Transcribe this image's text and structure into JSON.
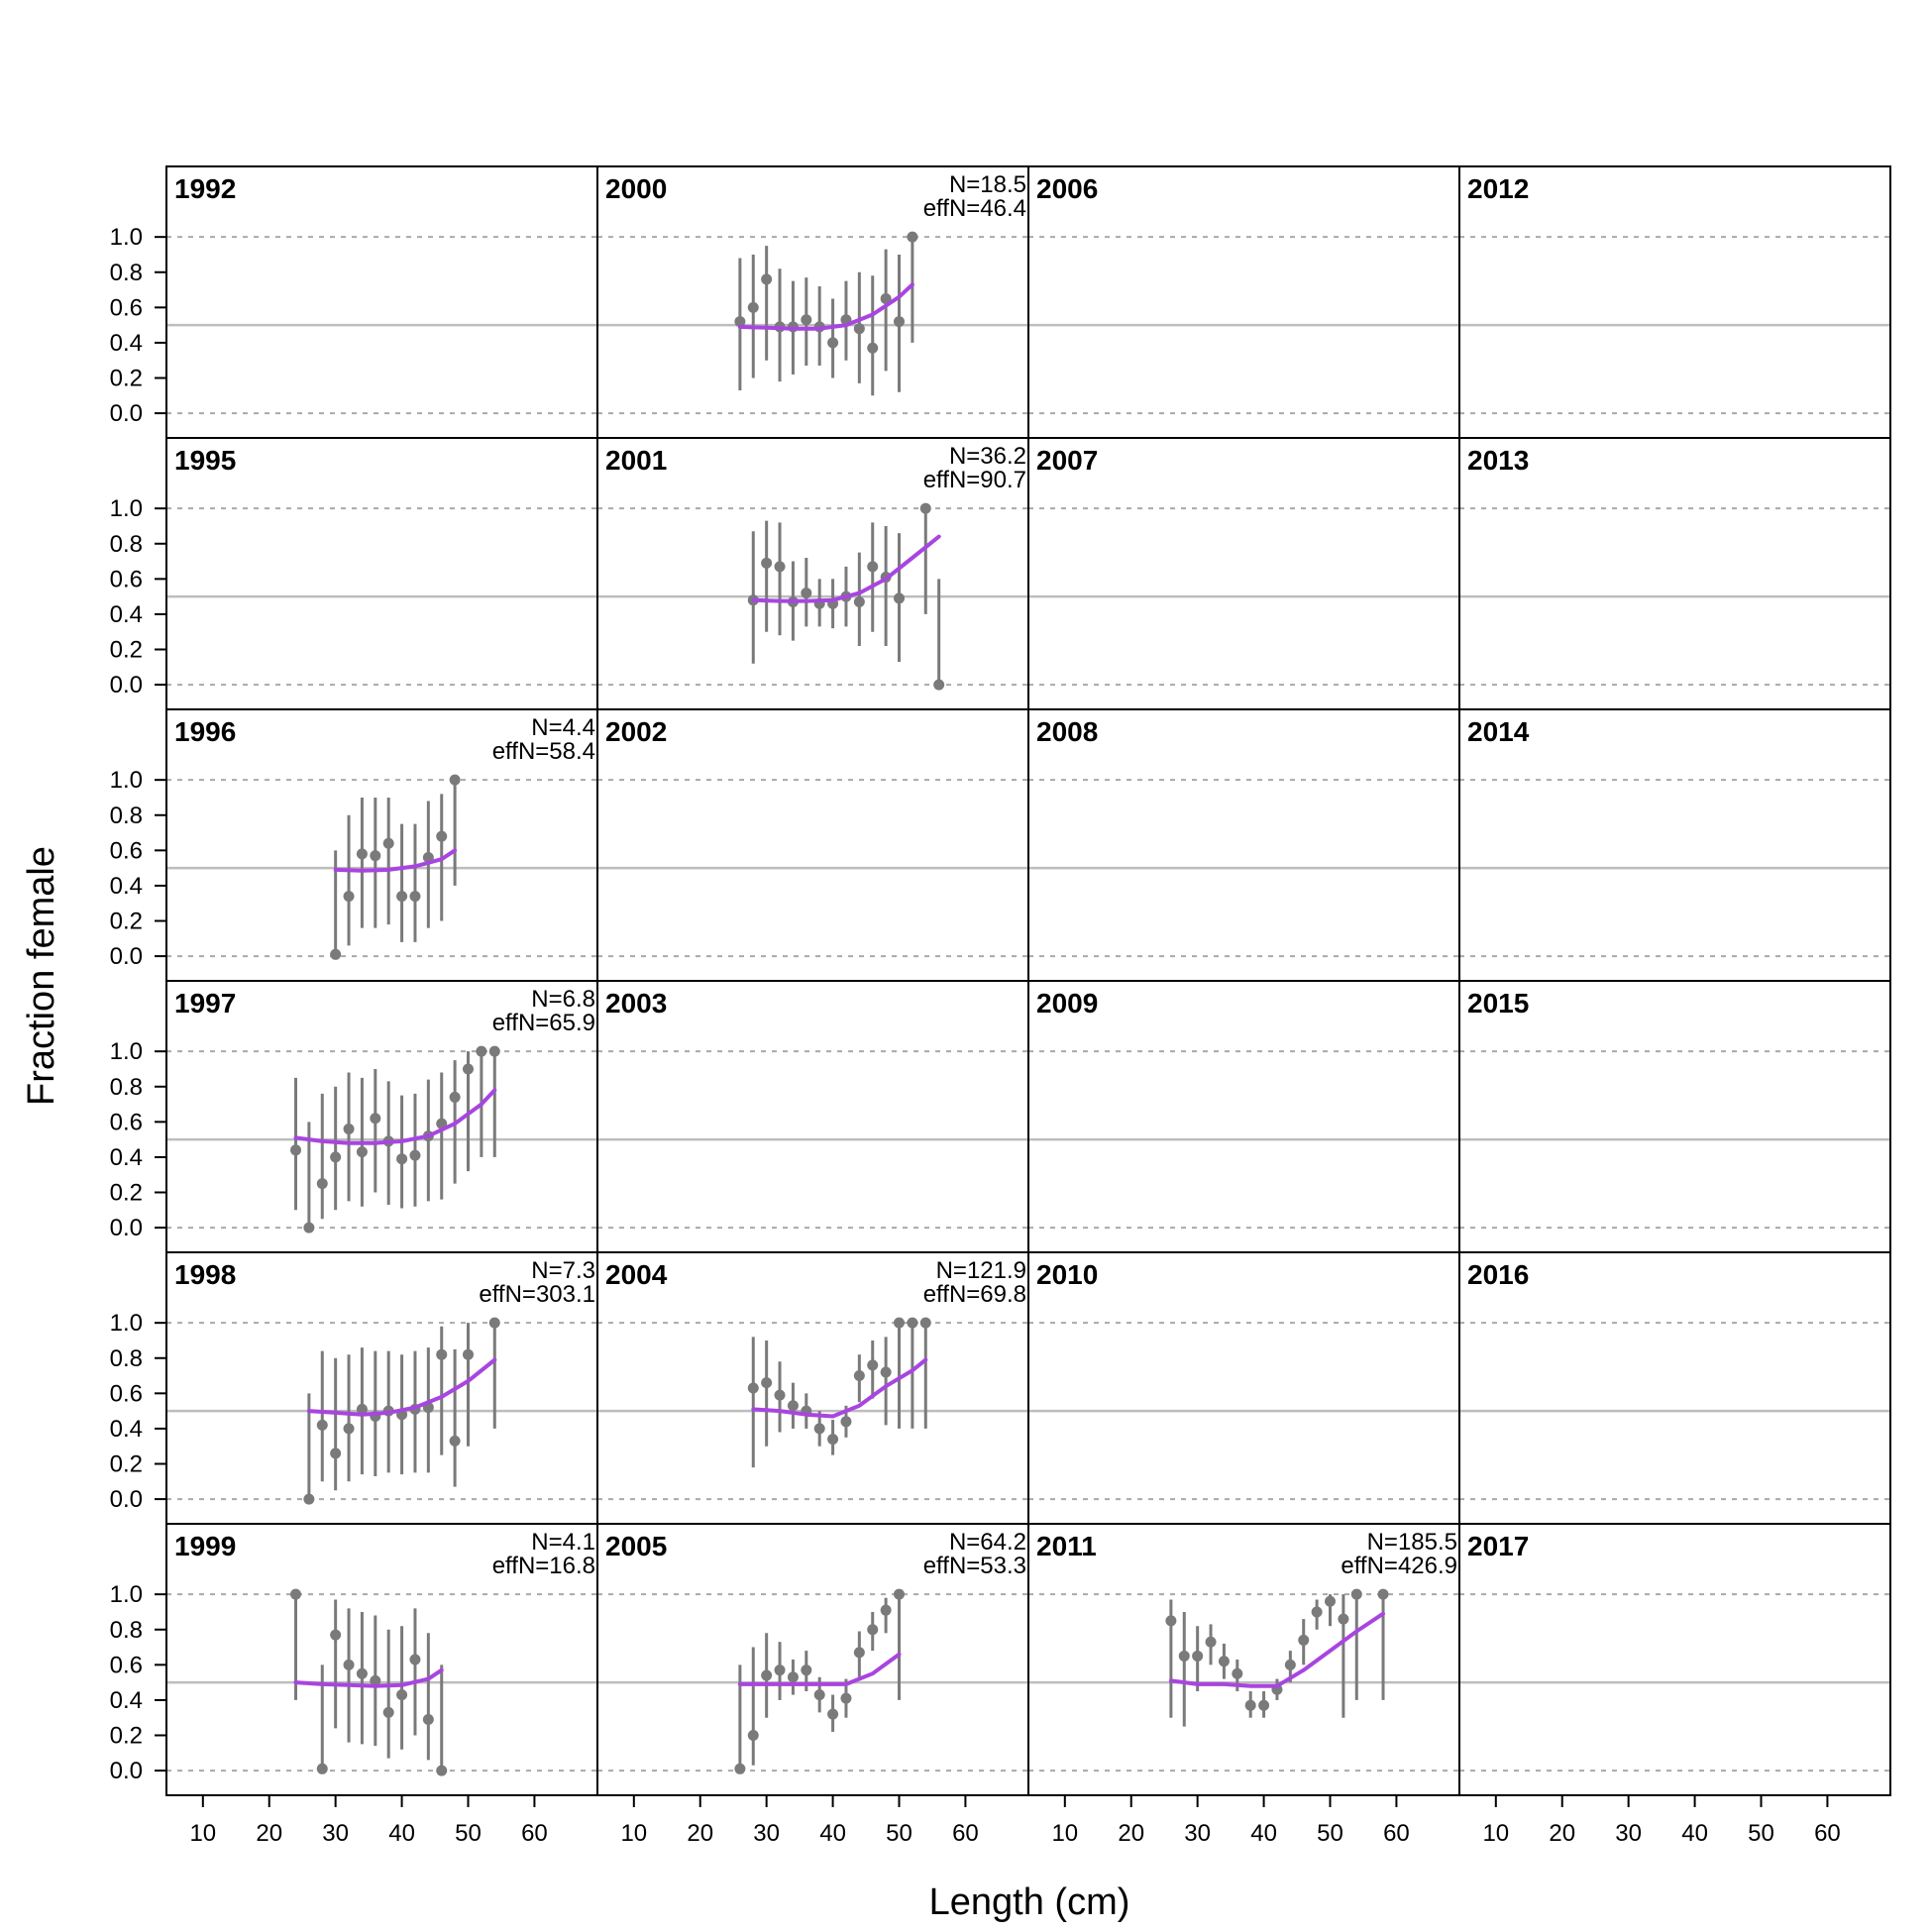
{
  "chart_data": {
    "type": "scatter",
    "xlabel": "Length (cm)",
    "ylabel": "Fraction female",
    "xlim": [
      4.5,
      69.5
    ],
    "ylim": [
      -0.14,
      1.4
    ],
    "xticks": [
      10,
      20,
      30,
      40,
      50,
      60
    ],
    "yticks": [
      "0.0",
      "0.2",
      "0.4",
      "0.6",
      "0.8",
      "1.0"
    ],
    "reference_line": 0.5,
    "grid_lines": [
      0,
      1
    ],
    "colors": {
      "points": "#7a7a7a",
      "fit": "#a845e0",
      "reference": "#bdbdbd",
      "grid": "#a9a9a9",
      "frame": "#000000"
    },
    "layout": {
      "columns": 4,
      "rows": 6,
      "fill_order": "column-major"
    },
    "panels": [
      {
        "year": "1992"
      },
      {
        "year": "1995"
      },
      {
        "year": "1996",
        "N": "N=4.4",
        "effN": "effN=58.4",
        "points": [
          [
            30,
            0.01,
            0.0,
            0.6
          ],
          [
            32,
            0.34,
            0.06,
            0.8
          ],
          [
            34,
            0.58,
            0.16,
            0.9
          ],
          [
            36,
            0.57,
            0.16,
            0.9
          ],
          [
            38,
            0.64,
            0.18,
            0.9
          ],
          [
            40,
            0.34,
            0.08,
            0.75
          ],
          [
            42,
            0.34,
            0.08,
            0.75
          ],
          [
            44,
            0.56,
            0.16,
            0.88
          ],
          [
            46,
            0.68,
            0.2,
            0.92
          ],
          [
            48,
            1.0,
            0.4,
            1.0
          ]
        ],
        "fit": [
          [
            30,
            0.49
          ],
          [
            34,
            0.485
          ],
          [
            38,
            0.49
          ],
          [
            42,
            0.51
          ],
          [
            46,
            0.55
          ],
          [
            48,
            0.6
          ]
        ]
      },
      {
        "year": "1997",
        "N": "N=6.8",
        "effN": "effN=65.9",
        "points": [
          [
            24,
            0.44,
            0.1,
            0.85
          ],
          [
            26,
            0.0,
            0.0,
            0.6
          ],
          [
            28,
            0.25,
            0.05,
            0.76
          ],
          [
            30,
            0.4,
            0.1,
            0.8
          ],
          [
            32,
            0.56,
            0.15,
            0.88
          ],
          [
            34,
            0.43,
            0.12,
            0.85
          ],
          [
            36,
            0.62,
            0.2,
            0.9
          ],
          [
            38,
            0.49,
            0.13,
            0.83
          ],
          [
            40,
            0.39,
            0.11,
            0.75
          ],
          [
            42,
            0.41,
            0.12,
            0.76
          ],
          [
            44,
            0.52,
            0.15,
            0.84
          ],
          [
            46,
            0.59,
            0.16,
            0.88
          ],
          [
            48,
            0.74,
            0.25,
            0.95
          ],
          [
            50,
            0.9,
            0.32,
            1.0
          ],
          [
            52,
            1.0,
            0.4,
            1.0
          ],
          [
            54,
            1.0,
            0.4,
            1.0
          ]
        ],
        "fit": [
          [
            24,
            0.51
          ],
          [
            28,
            0.49
          ],
          [
            32,
            0.48
          ],
          [
            36,
            0.48
          ],
          [
            40,
            0.49
          ],
          [
            44,
            0.52
          ],
          [
            48,
            0.59
          ],
          [
            52,
            0.7
          ],
          [
            54,
            0.78
          ]
        ]
      },
      {
        "year": "1998",
        "N": "N=7.3",
        "effN": "effN=303.1",
        "points": [
          [
            26,
            0.0,
            0.0,
            0.6
          ],
          [
            28,
            0.42,
            0.1,
            0.84
          ],
          [
            30,
            0.26,
            0.05,
            0.8
          ],
          [
            32,
            0.4,
            0.1,
            0.82
          ],
          [
            34,
            0.51,
            0.14,
            0.86
          ],
          [
            36,
            0.47,
            0.13,
            0.84
          ],
          [
            38,
            0.5,
            0.15,
            0.84
          ],
          [
            40,
            0.48,
            0.14,
            0.82
          ],
          [
            42,
            0.51,
            0.15,
            0.84
          ],
          [
            44,
            0.52,
            0.15,
            0.86
          ],
          [
            46,
            0.82,
            0.25,
            0.98
          ],
          [
            48,
            0.33,
            0.07,
            0.85
          ],
          [
            50,
            0.82,
            0.3,
            1.0
          ],
          [
            54,
            1.0,
            0.4,
            1.0
          ]
        ],
        "fit": [
          [
            26,
            0.5
          ],
          [
            30,
            0.49
          ],
          [
            34,
            0.48
          ],
          [
            38,
            0.49
          ],
          [
            42,
            0.52
          ],
          [
            46,
            0.58
          ],
          [
            50,
            0.67
          ],
          [
            54,
            0.79
          ]
        ]
      },
      {
        "year": "1999",
        "N": "N=4.1",
        "effN": "effN=16.8",
        "points": [
          [
            24,
            1.0,
            0.4,
            1.0
          ],
          [
            28,
            0.01,
            0.0,
            0.6
          ],
          [
            30,
            0.77,
            0.24,
            0.97
          ],
          [
            32,
            0.6,
            0.16,
            0.92
          ],
          [
            34,
            0.55,
            0.15,
            0.9
          ],
          [
            36,
            0.51,
            0.14,
            0.88
          ],
          [
            38,
            0.33,
            0.07,
            0.8
          ],
          [
            40,
            0.43,
            0.12,
            0.82
          ],
          [
            42,
            0.63,
            0.2,
            0.92
          ],
          [
            44,
            0.29,
            0.06,
            0.78
          ],
          [
            46,
            0.0,
            0.0,
            0.6
          ]
        ],
        "fit": [
          [
            24,
            0.5
          ],
          [
            28,
            0.49
          ],
          [
            32,
            0.485
          ],
          [
            36,
            0.48
          ],
          [
            40,
            0.485
          ],
          [
            44,
            0.52
          ],
          [
            46,
            0.57
          ]
        ]
      },
      {
        "year": "2000",
        "N": "N=18.5",
        "effN": "effN=46.4",
        "points": [
          [
            26,
            0.52,
            0.13,
            0.88
          ],
          [
            28,
            0.6,
            0.2,
            0.9
          ],
          [
            30,
            0.76,
            0.3,
            0.95
          ],
          [
            32,
            0.49,
            0.18,
            0.82
          ],
          [
            34,
            0.49,
            0.22,
            0.75
          ],
          [
            36,
            0.53,
            0.27,
            0.77
          ],
          [
            38,
            0.49,
            0.27,
            0.72
          ],
          [
            40,
            0.4,
            0.2,
            0.65
          ],
          [
            42,
            0.53,
            0.3,
            0.75
          ],
          [
            44,
            0.48,
            0.17,
            0.8
          ],
          [
            46,
            0.37,
            0.1,
            0.78
          ],
          [
            48,
            0.65,
            0.24,
            0.93
          ],
          [
            50,
            0.52,
            0.12,
            0.9
          ],
          [
            52,
            1.0,
            0.4,
            1.0
          ]
        ],
        "fit": [
          [
            26,
            0.49
          ],
          [
            30,
            0.485
          ],
          [
            34,
            0.48
          ],
          [
            38,
            0.48
          ],
          [
            42,
            0.5
          ],
          [
            46,
            0.56
          ],
          [
            50,
            0.66
          ],
          [
            52,
            0.73
          ]
        ]
      },
      {
        "year": "2001",
        "N": "N=36.2",
        "effN": "effN=90.7",
        "points": [
          [
            28,
            0.48,
            0.12,
            0.87
          ],
          [
            30,
            0.69,
            0.3,
            0.93
          ],
          [
            32,
            0.67,
            0.28,
            0.92
          ],
          [
            34,
            0.47,
            0.25,
            0.7
          ],
          [
            36,
            0.52,
            0.33,
            0.72
          ],
          [
            38,
            0.46,
            0.33,
            0.6
          ],
          [
            40,
            0.46,
            0.32,
            0.6
          ],
          [
            42,
            0.5,
            0.33,
            0.67
          ],
          [
            44,
            0.47,
            0.22,
            0.75
          ],
          [
            46,
            0.67,
            0.3,
            0.92
          ],
          [
            48,
            0.61,
            0.22,
            0.9
          ],
          [
            50,
            0.49,
            0.13,
            0.86
          ],
          [
            54,
            1.0,
            0.4,
            1.0
          ],
          [
            56,
            0.0,
            0.0,
            0.6
          ]
        ],
        "fit": [
          [
            28,
            0.48
          ],
          [
            32,
            0.475
          ],
          [
            36,
            0.475
          ],
          [
            40,
            0.48
          ],
          [
            44,
            0.52
          ],
          [
            48,
            0.6
          ],
          [
            52,
            0.72
          ],
          [
            56,
            0.84
          ]
        ]
      },
      {
        "year": "2002"
      },
      {
        "year": "2003"
      },
      {
        "year": "2004",
        "N": "N=121.9",
        "effN": "effN=69.8",
        "points": [
          [
            28,
            0.63,
            0.18,
            0.92
          ],
          [
            30,
            0.66,
            0.3,
            0.9
          ],
          [
            32,
            0.59,
            0.38,
            0.78
          ],
          [
            34,
            0.53,
            0.4,
            0.66
          ],
          [
            36,
            0.5,
            0.4,
            0.6
          ],
          [
            38,
            0.4,
            0.3,
            0.5
          ],
          [
            40,
            0.34,
            0.25,
            0.45
          ],
          [
            42,
            0.44,
            0.35,
            0.53
          ],
          [
            44,
            0.7,
            0.55,
            0.82
          ],
          [
            46,
            0.76,
            0.57,
            0.9
          ],
          [
            48,
            0.72,
            0.42,
            0.92
          ],
          [
            50,
            1.0,
            0.4,
            1.0
          ],
          [
            52,
            1.0,
            0.4,
            1.0
          ],
          [
            54,
            1.0,
            0.4,
            1.0
          ]
        ],
        "fit": [
          [
            28,
            0.51
          ],
          [
            32,
            0.5
          ],
          [
            36,
            0.48
          ],
          [
            40,
            0.47
          ],
          [
            44,
            0.53
          ],
          [
            48,
            0.64
          ],
          [
            52,
            0.73
          ],
          [
            54,
            0.79
          ]
        ]
      },
      {
        "year": "2005",
        "N": "N=64.2",
        "effN": "effN=53.3",
        "points": [
          [
            26,
            0.01,
            0.0,
            0.6
          ],
          [
            28,
            0.2,
            0.03,
            0.7
          ],
          [
            30,
            0.54,
            0.3,
            0.78
          ],
          [
            32,
            0.57,
            0.4,
            0.73
          ],
          [
            34,
            0.53,
            0.43,
            0.63
          ],
          [
            36,
            0.57,
            0.45,
            0.68
          ],
          [
            38,
            0.43,
            0.33,
            0.53
          ],
          [
            40,
            0.32,
            0.22,
            0.43
          ],
          [
            42,
            0.41,
            0.3,
            0.52
          ],
          [
            44,
            0.67,
            0.53,
            0.79
          ],
          [
            46,
            0.8,
            0.68,
            0.9
          ],
          [
            48,
            0.91,
            0.78,
            0.98
          ],
          [
            50,
            1.0,
            0.4,
            1.0
          ]
        ],
        "fit": [
          [
            26,
            0.49
          ],
          [
            30,
            0.49
          ],
          [
            34,
            0.49
          ],
          [
            38,
            0.49
          ],
          [
            42,
            0.49
          ],
          [
            46,
            0.55
          ],
          [
            50,
            0.66
          ]
        ]
      },
      {
        "year": "2006"
      },
      {
        "year": "2007"
      },
      {
        "year": "2008"
      },
      {
        "year": "2009"
      },
      {
        "year": "2010"
      },
      {
        "year": "2011",
        "N": "N=185.5",
        "effN": "effN=426.9",
        "points": [
          [
            26,
            0.85,
            0.3,
            0.97
          ],
          [
            28,
            0.65,
            0.25,
            0.9
          ],
          [
            30,
            0.65,
            0.45,
            0.82
          ],
          [
            32,
            0.73,
            0.6,
            0.83
          ],
          [
            34,
            0.62,
            0.52,
            0.72
          ],
          [
            36,
            0.55,
            0.45,
            0.63
          ],
          [
            38,
            0.37,
            0.3,
            0.45
          ],
          [
            40,
            0.37,
            0.3,
            0.45
          ],
          [
            42,
            0.46,
            0.4,
            0.52
          ],
          [
            44,
            0.6,
            0.5,
            0.68
          ],
          [
            46,
            0.74,
            0.6,
            0.86
          ],
          [
            48,
            0.9,
            0.8,
            0.97
          ],
          [
            50,
            0.96,
            0.82,
            1.0
          ],
          [
            52,
            0.86,
            0.3,
            1.0
          ],
          [
            54,
            1.0,
            0.4,
            1.0
          ],
          [
            58,
            1.0,
            0.4,
            1.0
          ]
        ],
        "fit": [
          [
            26,
            0.51
          ],
          [
            30,
            0.49
          ],
          [
            34,
            0.49
          ],
          [
            38,
            0.48
          ],
          [
            42,
            0.48
          ],
          [
            46,
            0.57
          ],
          [
            50,
            0.68
          ],
          [
            54,
            0.79
          ],
          [
            58,
            0.89
          ]
        ]
      },
      {
        "year": "2012"
      },
      {
        "year": "2013"
      },
      {
        "year": "2014"
      },
      {
        "year": "2015"
      },
      {
        "year": "2016"
      },
      {
        "year": "2017"
      }
    ]
  }
}
